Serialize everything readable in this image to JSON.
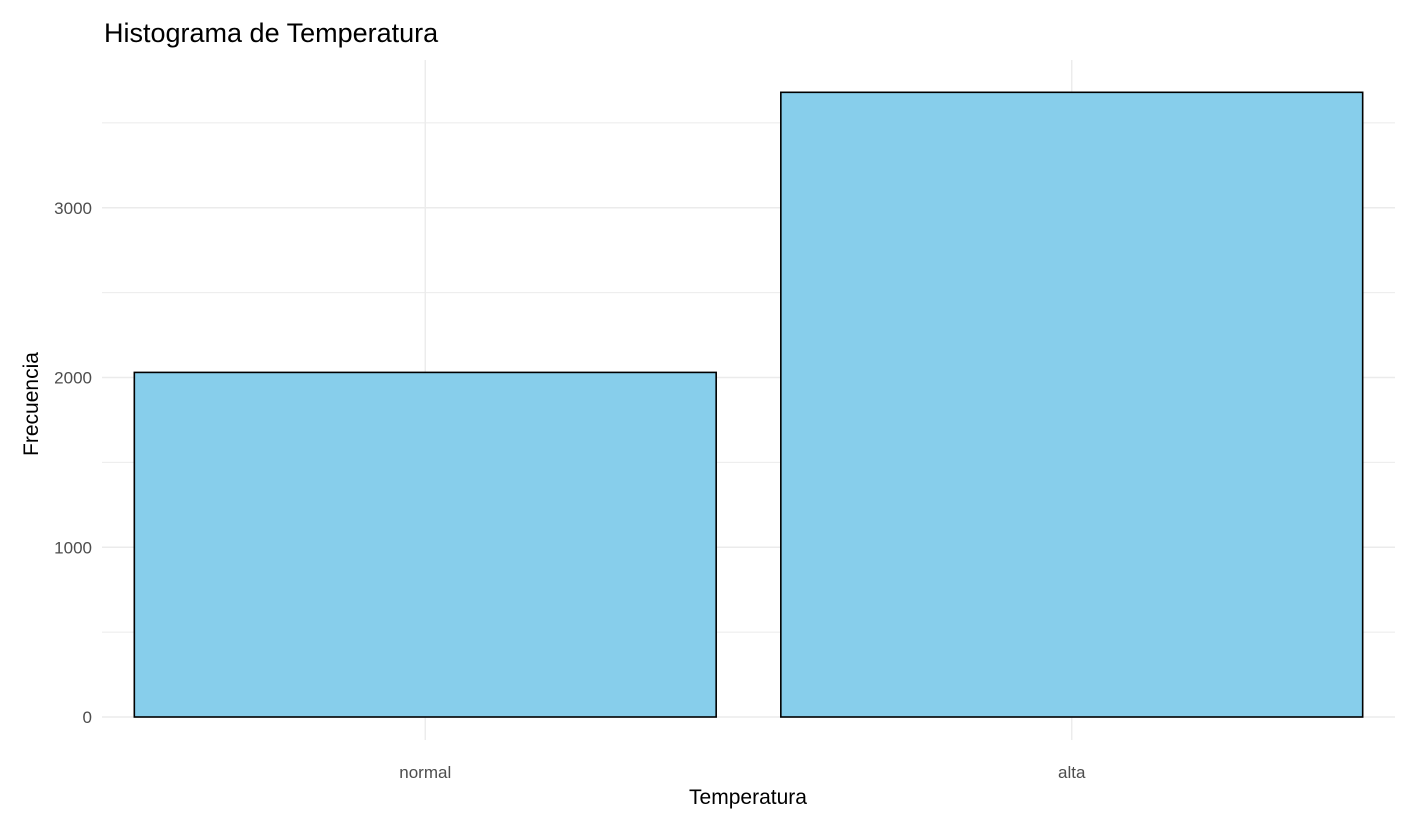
{
  "chart_data": {
    "type": "bar",
    "title": "Histograma de Temperatura",
    "xlabel": "Temperatura",
    "ylabel": "Frecuencia",
    "categories": [
      "normal",
      "alta"
    ],
    "values": [
      2030,
      3680
    ],
    "ylim": [
      0,
      3850
    ],
    "yticks": [
      0,
      1000,
      2000,
      3000
    ],
    "ytick_labels": [
      "0",
      "1000",
      "2000",
      "3000"
    ],
    "grid": true,
    "bar_fill": "#87ceeb",
    "bar_stroke": "#000000",
    "theme": "minimal"
  }
}
